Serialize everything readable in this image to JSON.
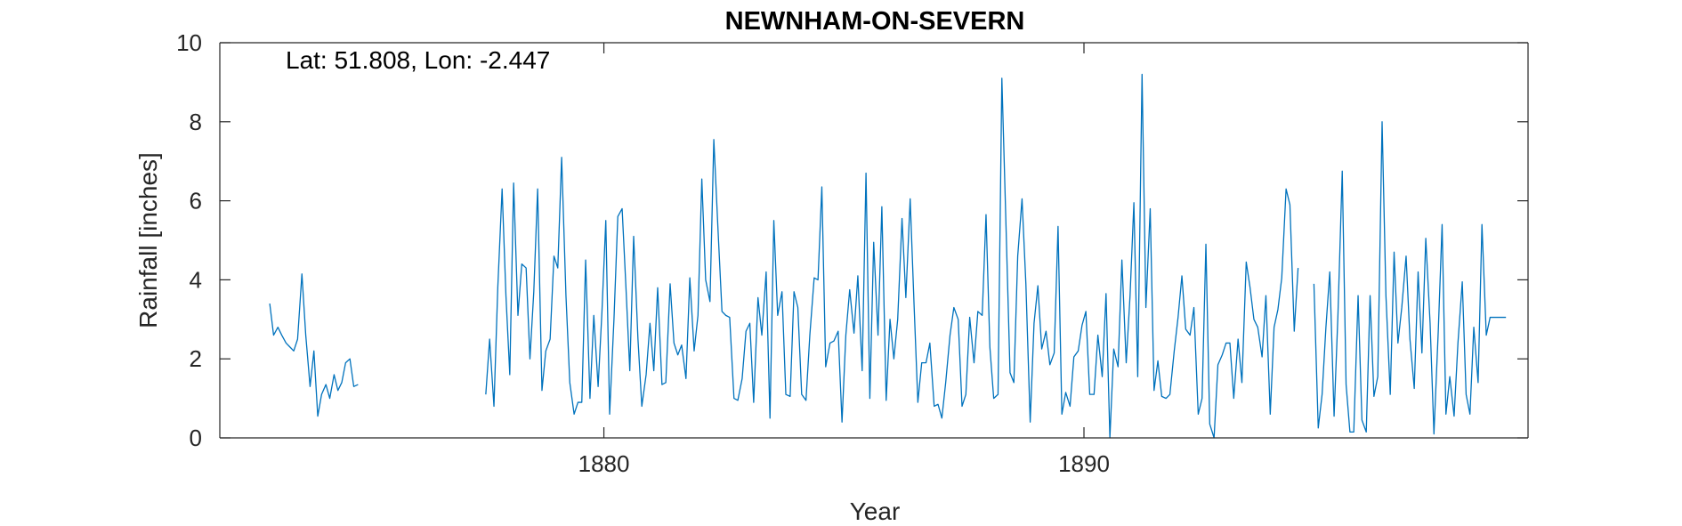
{
  "chart_data": {
    "type": "line",
    "title": "NEWNHAM-ON-SEVERN",
    "xlabel": "Year",
    "ylabel": "Rainfall [inches]",
    "annotation": "Lat: 51.808, Lon: -2.447",
    "xlim": [
      1872.0,
      1899.25
    ],
    "ylim": [
      0,
      10
    ],
    "xticks": [
      1880,
      1890
    ],
    "xtick_labels": [
      "1880",
      "1890"
    ],
    "yticks": [
      0,
      2,
      4,
      6,
      8,
      10
    ],
    "ytick_labels": [
      "0",
      "2",
      "4",
      "6",
      "8",
      "10"
    ],
    "grid": false,
    "color": "#0072BD",
    "series": [
      {
        "segments": [
          {
            "x": [
              1873.04,
              1873.12,
              1873.21,
              1873.29,
              1873.38,
              1873.46,
              1873.54,
              1873.62,
              1873.71,
              1873.79,
              1873.88,
              1873.96,
              1874.04,
              1874.12,
              1874.21,
              1874.29,
              1874.38,
              1874.46,
              1874.54,
              1874.62,
              1874.71,
              1874.79,
              1874.88
            ],
            "y": [
              3.4,
              2.6,
              2.8,
              2.6,
              2.4,
              2.3,
              2.2,
              2.5,
              4.15,
              2.6,
              1.3,
              2.2,
              0.55,
              1.1,
              1.35,
              1.0,
              1.6,
              1.2,
              1.4,
              1.9,
              2.0,
              1.3,
              1.35
            ]
          },
          {
            "x": [
              1877.54,
              1877.62,
              1877.71,
              1877.79,
              1877.88,
              1877.96,
              1878.04,
              1878.12,
              1878.21,
              1878.29,
              1878.38,
              1878.46,
              1878.54,
              1878.62,
              1878.71,
              1878.79,
              1878.88,
              1878.96,
              1879.04,
              1879.12,
              1879.21,
              1879.29,
              1879.38,
              1879.46,
              1879.54,
              1879.62,
              1879.71,
              1879.79,
              1879.88,
              1879.96,
              1880.04,
              1880.12,
              1880.21,
              1880.29,
              1880.38,
              1880.46,
              1880.54,
              1880.62,
              1880.71,
              1880.79,
              1880.88,
              1880.96,
              1881.04,
              1881.12,
              1881.21,
              1881.29,
              1881.38,
              1881.46,
              1881.54,
              1881.62,
              1881.71,
              1881.79,
              1881.88,
              1881.96,
              1882.04,
              1882.12,
              1882.21,
              1882.29,
              1882.38,
              1882.46,
              1882.54,
              1882.62,
              1882.71,
              1882.79,
              1882.88,
              1882.96,
              1883.04,
              1883.12,
              1883.21,
              1883.29,
              1883.38,
              1883.46,
              1883.54,
              1883.62,
              1883.71,
              1883.79,
              1883.88,
              1883.96,
              1884.04,
              1884.12,
              1884.21,
              1884.29,
              1884.38,
              1884.46,
              1884.54,
              1884.62,
              1884.71,
              1884.79,
              1884.88,
              1884.96,
              1885.04,
              1885.12,
              1885.21,
              1885.29,
              1885.38,
              1885.46,
              1885.54,
              1885.62,
              1885.71,
              1885.79,
              1885.88,
              1885.96,
              1886.04,
              1886.12,
              1886.21,
              1886.29,
              1886.38,
              1886.46,
              1886.54,
              1886.62,
              1886.71,
              1886.79,
              1886.88,
              1886.96,
              1887.04,
              1887.12,
              1887.21,
              1887.29,
              1887.38,
              1887.46,
              1887.54,
              1887.62,
              1887.71,
              1887.79,
              1887.88,
              1887.96,
              1888.04,
              1888.12,
              1888.21,
              1888.29,
              1888.38,
              1888.46,
              1888.54,
              1888.62,
              1888.71,
              1888.79,
              1888.88,
              1888.96,
              1889.04,
              1889.12,
              1889.21,
              1889.29,
              1889.38,
              1889.46,
              1889.54,
              1889.62,
              1889.71,
              1889.79,
              1889.88,
              1889.96,
              1890.04,
              1890.12,
              1890.21,
              1890.29,
              1890.38,
              1890.46,
              1890.54,
              1890.62,
              1890.71,
              1890.79,
              1890.88,
              1890.96,
              1891.04,
              1891.12,
              1891.21,
              1891.29,
              1891.38,
              1891.46,
              1891.54,
              1891.62,
              1891.71,
              1891.79,
              1891.88,
              1891.96,
              1892.04,
              1892.12,
              1892.21,
              1892.29,
              1892.38,
              1892.46,
              1892.54,
              1892.62,
              1892.71,
              1892.79,
              1892.88,
              1892.96,
              1893.04,
              1893.12,
              1893.21,
              1893.29,
              1893.38,
              1893.46,
              1893.54,
              1893.62,
              1893.71,
              1893.79,
              1893.88,
              1893.96,
              1894.04,
              1894.12,
              1894.21,
              1894.29,
              1894.38,
              1894.46
            ],
            "y": [
              1.1,
              2.5,
              0.8,
              3.8,
              6.3,
              3.6,
              1.6,
              6.45,
              3.1,
              4.4,
              4.3,
              2.0,
              3.7,
              6.3,
              1.2,
              2.2,
              2.5,
              4.6,
              4.3,
              7.1,
              3.6,
              1.4,
              0.6,
              0.9,
              0.9,
              4.5,
              1.0,
              3.1,
              1.3,
              3.2,
              5.5,
              0.6,
              3.0,
              5.6,
              5.8,
              3.8,
              1.7,
              5.1,
              2.5,
              0.8,
              1.6,
              2.9,
              1.7,
              3.8,
              1.35,
              1.4,
              3.9,
              2.4,
              2.1,
              2.35,
              1.5,
              4.05,
              2.2,
              3.1,
              6.55,
              4.0,
              3.45,
              7.55,
              5.2,
              3.2,
              3.1,
              3.05,
              1.0,
              0.95,
              1.5,
              2.7,
              2.9,
              0.9,
              3.55,
              2.6,
              4.2,
              0.5,
              5.5,
              3.1,
              3.7,
              1.1,
              1.05,
              3.7,
              3.3,
              1.1,
              0.95,
              2.6,
              4.05,
              4.0,
              6.35,
              1.8,
              2.4,
              2.45,
              2.7,
              0.4,
              2.6,
              3.75,
              2.65,
              4.1,
              1.7,
              6.7,
              1.0,
              4.95,
              2.6,
              5.85,
              0.95,
              3.0,
              2.0,
              3.0,
              5.55,
              3.55,
              6.05,
              3.4,
              0.9,
              1.9,
              1.9,
              2.4,
              0.8,
              0.85,
              0.5,
              1.4,
              2.6,
              3.3,
              3.0,
              0.8,
              1.1,
              3.05,
              1.9,
              3.2,
              3.1,
              5.65,
              2.3,
              1.0,
              1.1,
              9.1,
              5.2,
              1.65,
              1.4,
              4.6,
              6.05,
              3.9,
              0.4,
              2.9,
              3.85,
              2.25,
              2.7,
              1.85,
              2.15,
              5.35,
              0.6,
              1.15,
              0.8,
              2.05,
              2.2,
              2.85,
              3.2,
              1.1,
              1.1,
              2.6,
              1.55,
              3.65,
              0.0,
              2.25,
              1.8,
              4.5,
              1.9,
              3.6,
              5.95,
              1.55,
              9.2,
              3.3,
              5.8,
              1.2,
              1.95,
              1.05,
              1.0,
              1.1,
              2.2,
              3.05,
              4.1,
              2.75,
              2.6,
              3.3,
              0.6,
              1.0,
              4.9,
              0.35,
              0.0,
              1.85,
              2.1,
              2.4,
              2.4,
              1.0,
              2.5,
              1.4,
              4.45,
              3.8,
              3.0,
              2.8,
              2.05,
              3.6,
              0.6,
              2.8,
              3.25,
              4.05,
              6.3,
              5.9,
              2.7,
              4.3
            ]
          },
          {
            "x": [
              1894.79,
              1894.88,
              1894.96,
              1895.04,
              1895.12,
              1895.21,
              1895.29,
              1895.38,
              1895.46,
              1895.54,
              1895.62,
              1895.71,
              1895.79,
              1895.88,
              1895.96,
              1896.04,
              1896.12,
              1896.21,
              1896.29,
              1896.38,
              1896.46,
              1896.54,
              1896.62,
              1896.71,
              1896.79,
              1896.88,
              1896.96,
              1897.04,
              1897.12,
              1897.21,
              1897.29,
              1897.38,
              1897.46,
              1897.54,
              1897.62,
              1897.71,
              1897.79,
              1897.88,
              1897.96,
              1898.04,
              1898.12,
              1898.21,
              1898.29,
              1898.38,
              1898.46,
              1898.54,
              1898.62,
              1898.71,
              1898.79
            ],
            "y": [
              3.9,
              0.25,
              1.1,
              2.8,
              4.2,
              0.55,
              3.1,
              6.75,
              1.35,
              0.15,
              0.15,
              3.6,
              0.45,
              0.15,
              3.6,
              1.05,
              1.55,
              8.0,
              3.6,
              1.1,
              4.7,
              2.4,
              3.3,
              4.6,
              2.5,
              1.25,
              4.2,
              2.15,
              5.05,
              2.9,
              0.1,
              2.7,
              5.4,
              0.6,
              1.55,
              0.55,
              2.4,
              3.95,
              1.1,
              0.6,
              2.8,
              1.4,
              5.4,
              2.6,
              3.05,
              3.05,
              3.05,
              3.05,
              3.05
            ]
          }
        ]
      }
    ]
  }
}
